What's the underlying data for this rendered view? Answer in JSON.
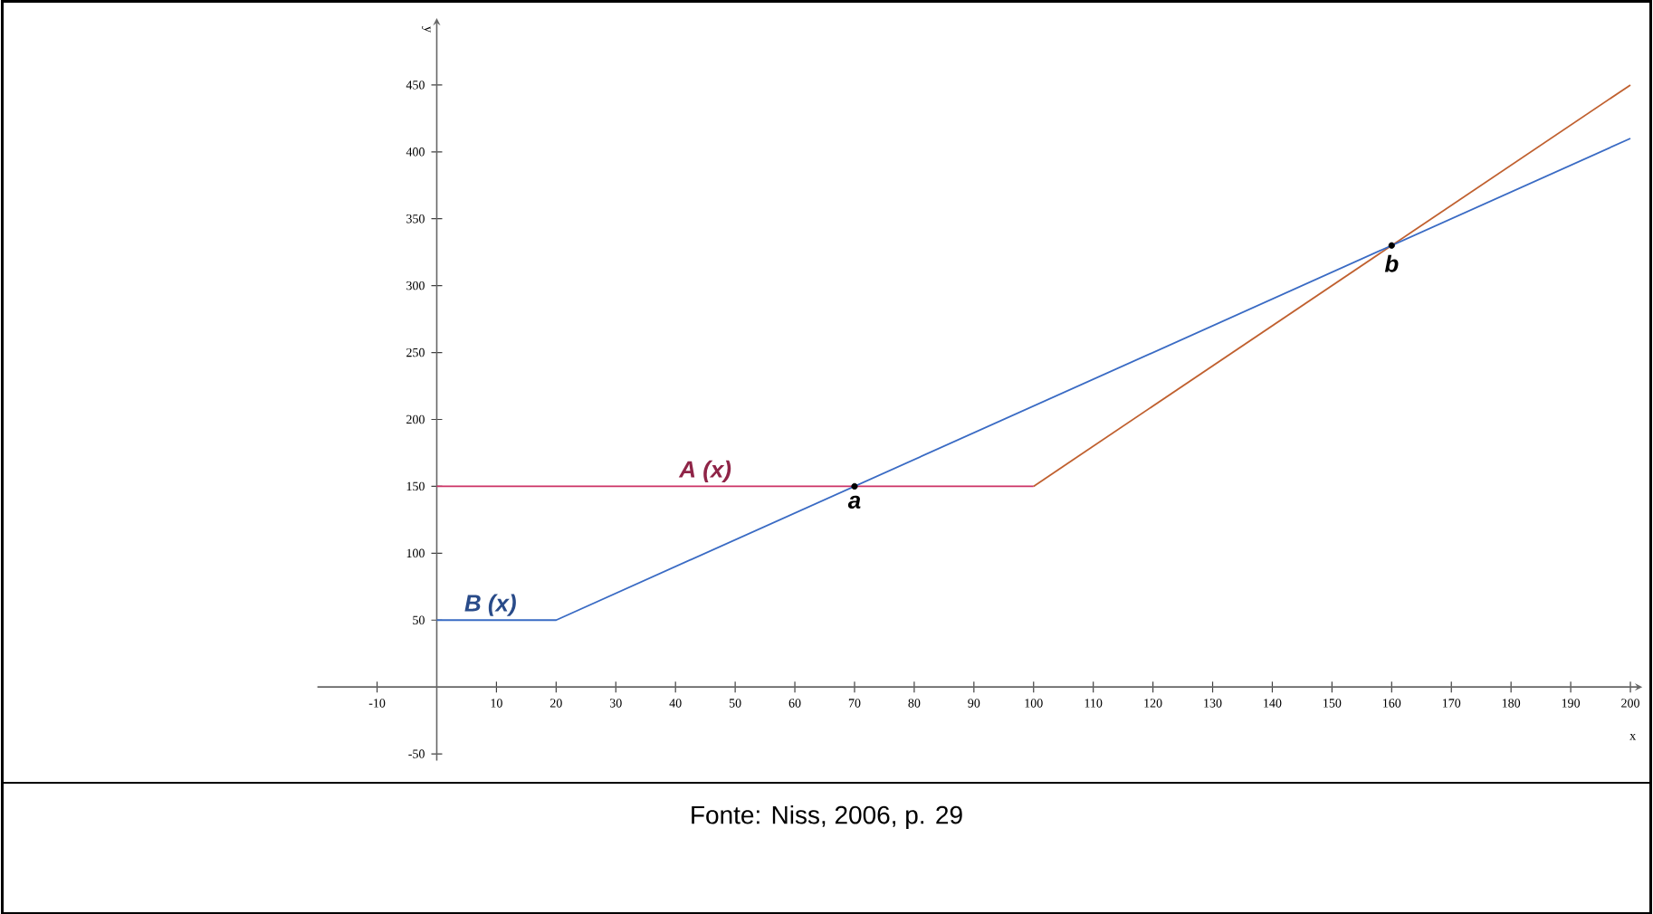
{
  "chart_data": {
    "type": "line",
    "xlabel": "x",
    "ylabel": "y",
    "xlim": [
      -20,
      202
    ],
    "ylim": [
      -55,
      500
    ],
    "xticks": [
      -10,
      10,
      20,
      30,
      40,
      50,
      60,
      70,
      80,
      90,
      100,
      110,
      120,
      130,
      140,
      150,
      160,
      170,
      180,
      190,
      200
    ],
    "yticks": [
      -50,
      50,
      100,
      150,
      200,
      250,
      300,
      350,
      400,
      450
    ],
    "grid": false,
    "legend": false,
    "line_style": "solid",
    "marker": "none",
    "series": [
      {
        "name": "A (x)",
        "color": "#cc3366",
        "x": [
          0,
          100
        ],
        "values": [
          150,
          150
        ]
      },
      {
        "color": "#c0602f",
        "x": [
          100,
          200
        ],
        "values": [
          150,
          450
        ]
      },
      {
        "name": "B (x)",
        "color": "#3a6bc4",
        "x": [
          0,
          20,
          200
        ],
        "values": [
          50,
          50,
          410
        ]
      },
      {
        "type": "scatter",
        "marker": "circle",
        "color": "#000000",
        "x": [
          70,
          160
        ],
        "values": [
          150,
          330
        ]
      }
    ],
    "annotations": [
      {
        "text": "a",
        "x": 70,
        "y": 150
      },
      {
        "text": "b",
        "x": 160,
        "y": 330
      },
      "Fonte: Niss, 2006, p. 29"
    ]
  }
}
